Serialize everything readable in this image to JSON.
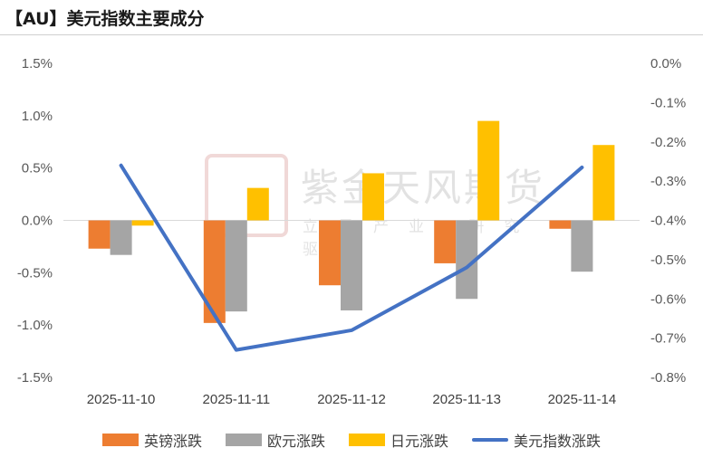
{
  "title": "【AU】美元指数主要成分",
  "watermark": {
    "main": "紫金天风期货",
    "sub": "立足产业 研究驱动"
  },
  "chart_data": {
    "type": "bar",
    "categories": [
      "2025-11-10",
      "2025-11-11",
      "2025-11-12",
      "2025-11-13",
      "2025-11-14"
    ],
    "series": [
      {
        "name": "英镑涨跌",
        "type": "bar",
        "axis": "left",
        "color": "#ED7D31",
        "values": [
          -0.27,
          -0.98,
          -0.62,
          -0.41,
          -0.08
        ]
      },
      {
        "name": "欧元涨跌",
        "type": "bar",
        "axis": "left",
        "color": "#A5A5A5",
        "values": [
          -0.33,
          -0.87,
          -0.86,
          -0.75,
          -0.49
        ]
      },
      {
        "name": "日元涨跌",
        "type": "bar",
        "axis": "left",
        "color": "#FFC000",
        "values": [
          -0.05,
          0.31,
          0.45,
          0.95,
          0.72
        ]
      },
      {
        "name": "美元指数涨跌",
        "type": "line",
        "axis": "right",
        "color": "#4472C4",
        "values": [
          -0.26,
          -0.73,
          -0.68,
          -0.52,
          -0.265
        ]
      }
    ],
    "y_left": {
      "ylim": [
        -1.5,
        1.5
      ],
      "ticks": [
        "1.5%",
        "1.0%",
        "0.5%",
        "0.0%",
        "-0.5%",
        "-1.0%",
        "-1.5%"
      ]
    },
    "y_right": {
      "ylim": [
        -0.8,
        0.0
      ],
      "ticks": [
        "0.0%",
        "-0.1%",
        "-0.2%",
        "-0.3%",
        "-0.4%",
        "-0.5%",
        "-0.6%",
        "-0.7%",
        "-0.8%"
      ]
    },
    "grid": false,
    "legend_position": "bottom"
  }
}
